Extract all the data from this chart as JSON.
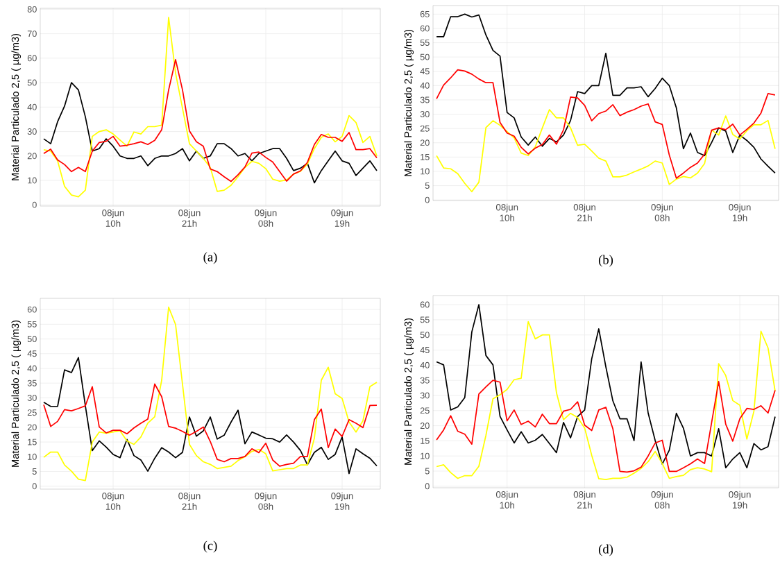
{
  "chart_data": [
    {
      "type": "line",
      "ylabel": "Material Particulado 2,5 ( µg/m3)",
      "annotations": [
        "(a)"
      ],
      "grid": true,
      "categories": [
        null,
        null,
        null,
        null,
        null,
        null,
        null,
        null,
        null,
        null,
        "08jun 10h",
        null,
        null,
        null,
        null,
        null,
        null,
        null,
        null,
        null,
        null,
        "08jun 21h",
        null,
        null,
        null,
        null,
        null,
        null,
        null,
        null,
        null,
        null,
        "09jun 08h",
        null,
        null,
        null,
        null,
        null,
        null,
        null,
        null,
        null,
        null,
        "09jun 19h",
        null,
        null,
        null,
        null,
        null
      ],
      "ylim": [
        -0.5,
        80.4
      ],
      "yticks": [
        0,
        10,
        20,
        30,
        40,
        50,
        60,
        70,
        80
      ],
      "series": [
        {
          "color": "#000000",
          "values": [
            27,
            25,
            34,
            40.4,
            50,
            47,
            36,
            22,
            23,
            27,
            24,
            20,
            19,
            19,
            20,
            16,
            19,
            20,
            20,
            21,
            23,
            18,
            22,
            19,
            20,
            25,
            25,
            23,
            20,
            21,
            18,
            21,
            22,
            23,
            23,
            19,
            14,
            15,
            17,
            9,
            14,
            18,
            22,
            18,
            17,
            12,
            15,
            18,
            14
          ]
        },
        {
          "color": "#ffff00",
          "values": [
            22.5,
            22,
            18,
            7.6,
            4,
            3.3,
            6,
            28,
            30,
            30.7,
            29,
            26.5,
            24,
            29.8,
            29,
            32,
            32,
            32.6,
            76.7,
            53.9,
            39.5,
            25,
            22,
            19,
            15.3,
            5.5,
            6,
            8,
            11.5,
            15.3,
            17.8,
            17,
            14.8,
            10.5,
            9.7,
            10.2,
            12.6,
            13.7,
            16.7,
            23,
            27.6,
            29,
            25.8,
            28,
            36.5,
            33.7,
            25.5,
            28,
            20
          ]
        },
        {
          "color": "#ff0000",
          "values": [
            21,
            22.8,
            18.4,
            16.5,
            13.6,
            15.3,
            13.6,
            22,
            25.5,
            26,
            28,
            24,
            24.4,
            25,
            25.8,
            24.7,
            26.4,
            30.7,
            47,
            59.4,
            47,
            30.2,
            25.8,
            24,
            14.7,
            13.6,
            11.5,
            9.6,
            12.3,
            15.5,
            21.2,
            21.6,
            19.4,
            17.5,
            13.6,
            9.7,
            12.6,
            13.9,
            17.4,
            24.7,
            28.8,
            27.6,
            27.6,
            26,
            29.6,
            22.6,
            22.6,
            23,
            19.2
          ]
        }
      ]
    },
    {
      "type": "line",
      "ylabel": "Material Particulado 2,5 ( µg/m3)",
      "annotations": [
        "(b)"
      ],
      "grid": true,
      "categories": [
        null,
        null,
        null,
        null,
        null,
        null,
        null,
        null,
        null,
        null,
        "08jun 10h",
        null,
        null,
        null,
        null,
        null,
        null,
        null,
        null,
        null,
        null,
        "08jun 21h",
        null,
        null,
        null,
        null,
        null,
        null,
        null,
        null,
        null,
        null,
        "09jun 08h",
        null,
        null,
        null,
        null,
        null,
        null,
        null,
        null,
        null,
        null,
        "09jun 19h",
        null,
        null,
        null,
        null,
        null
      ],
      "ylim": [
        -0.2,
        68
      ],
      "yticks": [
        0,
        5,
        10,
        15,
        20,
        25,
        30,
        35,
        40,
        45,
        50,
        55,
        60,
        65
      ],
      "series": [
        {
          "color": "#000000",
          "values": [
            57.1,
            57.1,
            64.1,
            64.1,
            65,
            64,
            64.7,
            57.7,
            52.3,
            50.3,
            30.6,
            28.7,
            22,
            19.2,
            22,
            18.8,
            21.5,
            20.3,
            22.7,
            27.8,
            37.9,
            37.2,
            40,
            40,
            51.3,
            36.6,
            36.6,
            39.2,
            39.2,
            39.6,
            36.1,
            39,
            42.6,
            40,
            32.2,
            17.9,
            23.4,
            16.6,
            15.5,
            20.1,
            25.2,
            24.1,
            16.6,
            22.7,
            20.8,
            18.4,
            14.3,
            11.8,
            9.4
          ]
        },
        {
          "color": "#ffff00",
          "values": [
            15.5,
            11.2,
            10.9,
            9.2,
            5.8,
            2.9,
            6.2,
            25.3,
            27.7,
            26.1,
            23.9,
            21.7,
            16.4,
            15.5,
            18.6,
            25.2,
            31.6,
            28.7,
            28.7,
            25.2,
            19.1,
            19.5,
            17.1,
            14.6,
            13.6,
            8.1,
            8.1,
            8.7,
            9.8,
            10.8,
            11.9,
            13.6,
            12.9,
            5.4,
            7.3,
            8.2,
            7.7,
            9.4,
            12.7,
            24.4,
            22.7,
            29.4,
            22.9,
            21.3,
            24.2,
            26.3,
            26.3,
            27.8,
            17.9
          ]
        },
        {
          "color": "#ff0000",
          "values": [
            35.4,
            40.2,
            42.7,
            45.5,
            45.1,
            44,
            42.3,
            41,
            41,
            27.1,
            23.4,
            22.3,
            18.4,
            16.1,
            18.1,
            19.4,
            22.7,
            19.5,
            24.5,
            36,
            35.7,
            33.1,
            27.7,
            30.2,
            31.1,
            33.3,
            29.5,
            30.7,
            31.6,
            32.8,
            33.6,
            27.3,
            26.4,
            15.7,
            7.6,
            9.4,
            11.4,
            12.9,
            16,
            24.4,
            25.2,
            24.6,
            26.5,
            22.7,
            24.7,
            26.9,
            30.4,
            37.2,
            36.7
          ]
        }
      ]
    },
    {
      "type": "line",
      "ylabel": "Material Particulado 2,5 ( µg/m3)",
      "annotations": [
        "(c)"
      ],
      "grid": true,
      "categories": [
        null,
        null,
        null,
        null,
        null,
        null,
        null,
        null,
        null,
        null,
        "08jun 10h",
        null,
        null,
        null,
        null,
        null,
        null,
        null,
        null,
        null,
        null,
        "08jun 21h",
        null,
        null,
        null,
        null,
        null,
        null,
        null,
        null,
        null,
        null,
        "09jun 08h",
        null,
        null,
        null,
        null,
        null,
        null,
        null,
        null,
        null,
        null,
        "09jun 19h",
        null,
        null,
        null,
        null,
        null
      ],
      "ylim": [
        -1,
        63.8
      ],
      "yticks": [
        0,
        5,
        10,
        15,
        20,
        25,
        30,
        35,
        40,
        45,
        50,
        55,
        60
      ],
      "series": [
        {
          "color": "#000000",
          "values": [
            28.5,
            27.1,
            27.1,
            39.5,
            38.6,
            43.7,
            27.3,
            12.1,
            15.4,
            13.3,
            10.8,
            9.7,
            15.9,
            10.4,
            8.9,
            5.1,
            9.5,
            13.1,
            11.6,
            9.7,
            11.5,
            23.5,
            17,
            18.8,
            23.5,
            16,
            17.3,
            21.8,
            25.8,
            14.4,
            18.4,
            17.4,
            16.3,
            16.1,
            15,
            17.4,
            15,
            12.1,
            7.3,
            11.5,
            13.2,
            9.1,
            10.8,
            16.7,
            4.3,
            12.7,
            11,
            9.5,
            6.9
          ]
        },
        {
          "color": "#ffff00",
          "values": [
            9.8,
            11.6,
            11.6,
            7.2,
            5.1,
            2.4,
            1.9,
            15,
            18.4,
            18,
            18.4,
            18.8,
            15.4,
            14.2,
            16.7,
            21.4,
            23.6,
            36,
            60.8,
            54.9,
            34.6,
            14.2,
            10.4,
            8.3,
            7.4,
            6,
            6.4,
            6.8,
            8.7,
            10,
            11.8,
            12.5,
            11,
            5.2,
            5.6,
            6,
            6,
            7.2,
            7.2,
            16.3,
            36,
            40.4,
            31.4,
            29.8,
            21.8,
            18.4,
            22.2,
            33.8,
            35.3
          ]
        },
        {
          "color": "#ff0000",
          "values": [
            27.7,
            20.3,
            22,
            26,
            25.6,
            26.4,
            27.3,
            33.8,
            20.1,
            18.1,
            19,
            19,
            17.8,
            19.8,
            21.4,
            22.8,
            34.7,
            30.4,
            20.3,
            19.7,
            18.6,
            17.3,
            18.6,
            20.1,
            15.2,
            9.1,
            8.3,
            9.4,
            9.4,
            10.1,
            12.7,
            11.4,
            14.6,
            8.9,
            6.8,
            7.4,
            7.8,
            10.1,
            10.1,
            22.6,
            26.2,
            13.1,
            19.4,
            16.9,
            22.6,
            21.4,
            19.9,
            27.4,
            27.5
          ]
        }
      ]
    },
    {
      "type": "line",
      "ylabel": "Material Particulado 2,5 ( µg/m3)",
      "annotations": [
        "(d)"
      ],
      "grid": true,
      "categories": [
        null,
        null,
        null,
        null,
        null,
        null,
        null,
        null,
        null,
        null,
        "08jun 10h",
        null,
        null,
        null,
        null,
        null,
        null,
        null,
        null,
        null,
        null,
        "08jun 21h",
        null,
        null,
        null,
        null,
        null,
        null,
        null,
        null,
        null,
        null,
        "09jun 08h",
        null,
        null,
        null,
        null,
        null,
        null,
        null,
        null,
        null,
        null,
        "09jun 19h",
        null,
        null,
        null,
        null,
        null
      ],
      "ylim": [
        -0.5,
        63
      ],
      "yticks": [
        0,
        5,
        10,
        15,
        20,
        25,
        30,
        35,
        40,
        45,
        50,
        55,
        60
      ],
      "series": [
        {
          "color": "#000000",
          "values": [
            41.1,
            40.1,
            25.2,
            26.2,
            29.3,
            51,
            60,
            43.2,
            40.1,
            23.1,
            18.6,
            14.3,
            18,
            14.3,
            15.2,
            17.1,
            14.1,
            11.1,
            21.1,
            16,
            23,
            25.2,
            42.1,
            52,
            39.5,
            28.2,
            22.3,
            22.3,
            15.1,
            41.1,
            24.2,
            15.1,
            7.3,
            11.9,
            24.1,
            19.2,
            10,
            11.1,
            11.1,
            10,
            19,
            6.1,
            9,
            11.1,
            6.1,
            14.1,
            12,
            13.1,
            23
          ]
        },
        {
          "color": "#ffff00",
          "values": [
            6.5,
            7.1,
            4.5,
            2.6,
            3.5,
            3.5,
            6.6,
            16.8,
            28.9,
            30.2,
            32,
            35.2,
            35.7,
            54.4,
            48.7,
            50,
            50,
            30.9,
            22,
            24.1,
            22.7,
            19.2,
            10.2,
            2.5,
            2.2,
            2.6,
            2.6,
            3,
            4.3,
            5.9,
            8.1,
            11.5,
            7.5,
            2.6,
            3.2,
            3.6,
            5.5,
            6.1,
            5.7,
            4.8,
            40.5,
            36.6,
            28.3,
            26.8,
            15.6,
            24.8,
            51.2,
            45.7,
            31.5
          ]
        },
        {
          "color": "#ff0000",
          "values": [
            15.3,
            18.6,
            23.3,
            18.2,
            17.2,
            13.9,
            30.5,
            32.8,
            35,
            34.4,
            21.6,
            25.2,
            20.4,
            21.5,
            19.6,
            23.8,
            20.7,
            20.7,
            24.8,
            25.4,
            27.9,
            20.2,
            18.4,
            25.2,
            26.1,
            19,
            4.9,
            4.7,
            5.1,
            6.3,
            10,
            14.3,
            15.2,
            4.9,
            4.9,
            6.1,
            7.4,
            9,
            7.5,
            21,
            34.6,
            20.5,
            14.9,
            22.3,
            25.7,
            25.4,
            26.6,
            24.2,
            31.7
          ]
        }
      ]
    }
  ]
}
